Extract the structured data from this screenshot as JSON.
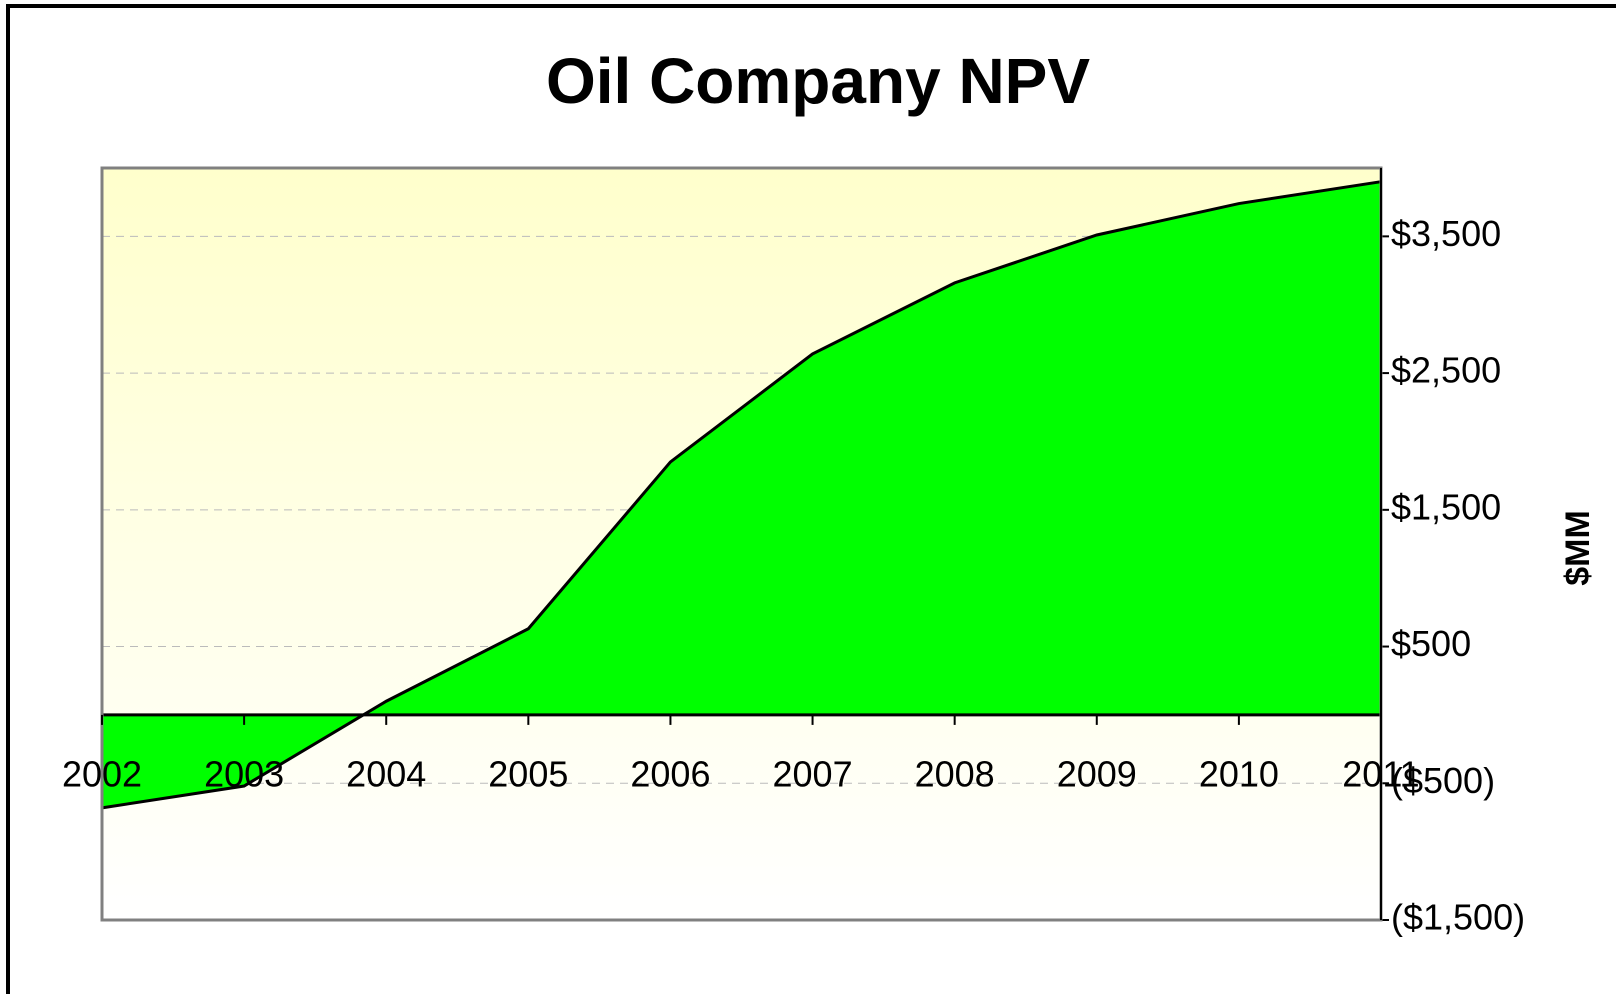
{
  "chart_data": {
    "type": "area",
    "title": "Oil Company NPV",
    "y_axis_label": "$MM",
    "categories": [
      "2002",
      "2003",
      "2004",
      "2005",
      "2006",
      "2007",
      "2008",
      "2009",
      "2010",
      "2011"
    ],
    "series": [
      {
        "name": "NPV",
        "color": "#00ff00",
        "values": [
          -680,
          -520,
          100,
          630,
          1850,
          2640,
          3160,
          3510,
          3740,
          3900
        ]
      }
    ],
    "ylim": [
      -1500,
      4000
    ],
    "yticks": [
      {
        "value": -1500,
        "label": "($1,500)"
      },
      {
        "value": -500,
        "label": "($500)"
      },
      {
        "value": 500,
        "label": "$500"
      },
      {
        "value": 1500,
        "label": "$1,500"
      },
      {
        "value": 2500,
        "label": "$2,500"
      },
      {
        "value": 3500,
        "label": "$3,500"
      }
    ],
    "negative_tick_color": "#ff0000",
    "grid": true,
    "y_axis_side": "right"
  }
}
